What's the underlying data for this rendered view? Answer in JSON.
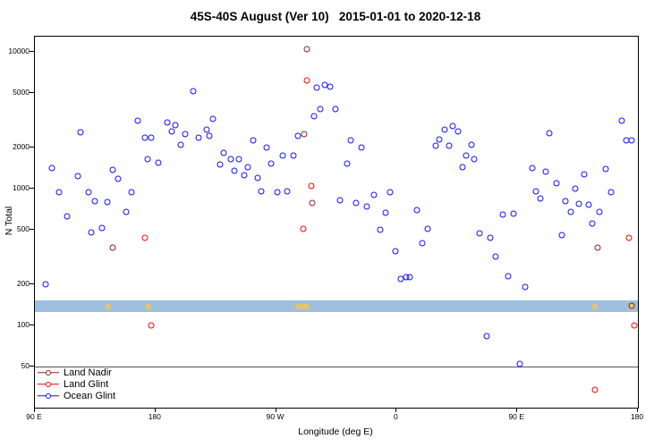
{
  "chart_data": {
    "type": "scatter",
    "title": "45S-40S August (Ver 10)   2015-01-01 to 2020-12-18",
    "xlabel": "Longitude (deg E)",
    "ylabel": "N Total",
    "marker": "open-circle",
    "grid": false,
    "legend_position": "bottom-left-inside",
    "x_axis": {
      "range": [
        0,
        450
      ],
      "note": "longitude axis starting at 90E and wrapping eastward",
      "ticks": [
        {
          "pos": 0,
          "label": "90 E"
        },
        {
          "pos": 90,
          "label": "180"
        },
        {
          "pos": 180,
          "label": "90 W"
        },
        {
          "pos": 270,
          "label": "0"
        },
        {
          "pos": 360,
          "label": "90 E"
        },
        {
          "pos": 450,
          "label": "180"
        }
      ]
    },
    "y_axis": {
      "scale": "log",
      "range": [
        25,
        13000
      ],
      "ticks": [
        50,
        100,
        200,
        500,
        1000,
        2000,
        5000,
        10000
      ]
    },
    "reference_line_y": 50,
    "band": {
      "y_low": 125,
      "y_high": 152,
      "color": "#9FBFDF",
      "marks_color": "#E8C36A",
      "marks_x": [
        55,
        85,
        196,
        200,
        203,
        418,
        445
      ]
    },
    "series": [
      {
        "name": "Land Nadir",
        "color": "#8B2323",
        "points": [
          [
            58,
            370
          ],
          [
            201,
            2520
          ],
          [
            203,
            10500
          ],
          [
            207,
            790
          ],
          [
            420,
            370
          ],
          [
            445,
            140
          ]
        ]
      },
      {
        "name": "Land Glint",
        "color": "#FF0000",
        "points": [
          [
            82,
            440
          ],
          [
            87,
            100
          ],
          [
            200,
            510
          ],
          [
            203,
            6200
          ],
          [
            206,
            1050
          ],
          [
            418,
            34
          ],
          [
            443,
            440
          ],
          [
            447,
            100
          ]
        ]
      },
      {
        "name": "Ocean Glint",
        "color": "#1010FF",
        "points": [
          [
            8,
            200
          ],
          [
            13,
            1410
          ],
          [
            18,
            940
          ],
          [
            24,
            630
          ],
          [
            32,
            1230
          ],
          [
            34,
            2600
          ],
          [
            40,
            940
          ],
          [
            42,
            480
          ],
          [
            45,
            810
          ],
          [
            50,
            520
          ],
          [
            54,
            800
          ],
          [
            58,
            1370
          ],
          [
            62,
            1180
          ],
          [
            68,
            680
          ],
          [
            72,
            950
          ],
          [
            77,
            3150
          ],
          [
            82,
            2370
          ],
          [
            84,
            1640
          ],
          [
            87,
            2370
          ],
          [
            92,
            1560
          ],
          [
            99,
            3060
          ],
          [
            102,
            2640
          ],
          [
            105,
            2930
          ],
          [
            109,
            2110
          ],
          [
            112,
            2520
          ],
          [
            118,
            5160
          ],
          [
            122,
            2370
          ],
          [
            128,
            2720
          ],
          [
            130,
            2440
          ],
          [
            133,
            3250
          ],
          [
            138,
            1500
          ],
          [
            141,
            1820
          ],
          [
            146,
            1640
          ],
          [
            149,
            1350
          ],
          [
            152,
            1660
          ],
          [
            156,
            1250
          ],
          [
            159,
            1450
          ],
          [
            163,
            2270
          ],
          [
            166,
            1200
          ],
          [
            169,
            960
          ],
          [
            173,
            2020
          ],
          [
            176,
            1540
          ],
          [
            181,
            950
          ],
          [
            185,
            1740
          ],
          [
            188,
            960
          ],
          [
            193,
            1760
          ],
          [
            196,
            2440
          ],
          [
            208,
            3400
          ],
          [
            210,
            5480
          ],
          [
            213,
            3830
          ],
          [
            216,
            5720
          ],
          [
            220,
            5570
          ],
          [
            224,
            3830
          ],
          [
            228,
            820
          ],
          [
            233,
            1520
          ],
          [
            236,
            2270
          ],
          [
            240,
            790
          ],
          [
            244,
            2020
          ],
          [
            248,
            740
          ],
          [
            253,
            900
          ],
          [
            258,
            500
          ],
          [
            262,
            670
          ],
          [
            265,
            940
          ],
          [
            269,
            350
          ],
          [
            273,
            220
          ],
          [
            277,
            225
          ],
          [
            280,
            225
          ],
          [
            285,
            700
          ],
          [
            289,
            400
          ],
          [
            293,
            510
          ],
          [
            299,
            2080
          ],
          [
            302,
            2300
          ],
          [
            306,
            2720
          ],
          [
            309,
            2080
          ],
          [
            312,
            2880
          ],
          [
            316,
            2640
          ],
          [
            319,
            1450
          ],
          [
            322,
            1760
          ],
          [
            326,
            2110
          ],
          [
            328,
            1640
          ],
          [
            332,
            470
          ],
          [
            337,
            84
          ],
          [
            340,
            440
          ],
          [
            344,
            320
          ],
          [
            349,
            650
          ],
          [
            353,
            230
          ],
          [
            357,
            660
          ],
          [
            362,
            52
          ],
          [
            366,
            190
          ],
          [
            371,
            1410
          ],
          [
            374,
            960
          ],
          [
            377,
            850
          ],
          [
            381,
            1330
          ],
          [
            384,
            2560
          ],
          [
            389,
            1090
          ],
          [
            393,
            460
          ],
          [
            396,
            810
          ],
          [
            400,
            680
          ],
          [
            403,
            1000
          ],
          [
            406,
            780
          ],
          [
            410,
            1270
          ],
          [
            413,
            760
          ],
          [
            416,
            560
          ],
          [
            421,
            680
          ],
          [
            426,
            1390
          ],
          [
            430,
            950
          ],
          [
            438,
            3150
          ],
          [
            441,
            2270
          ],
          [
            445,
            2250
          ]
        ]
      }
    ]
  }
}
